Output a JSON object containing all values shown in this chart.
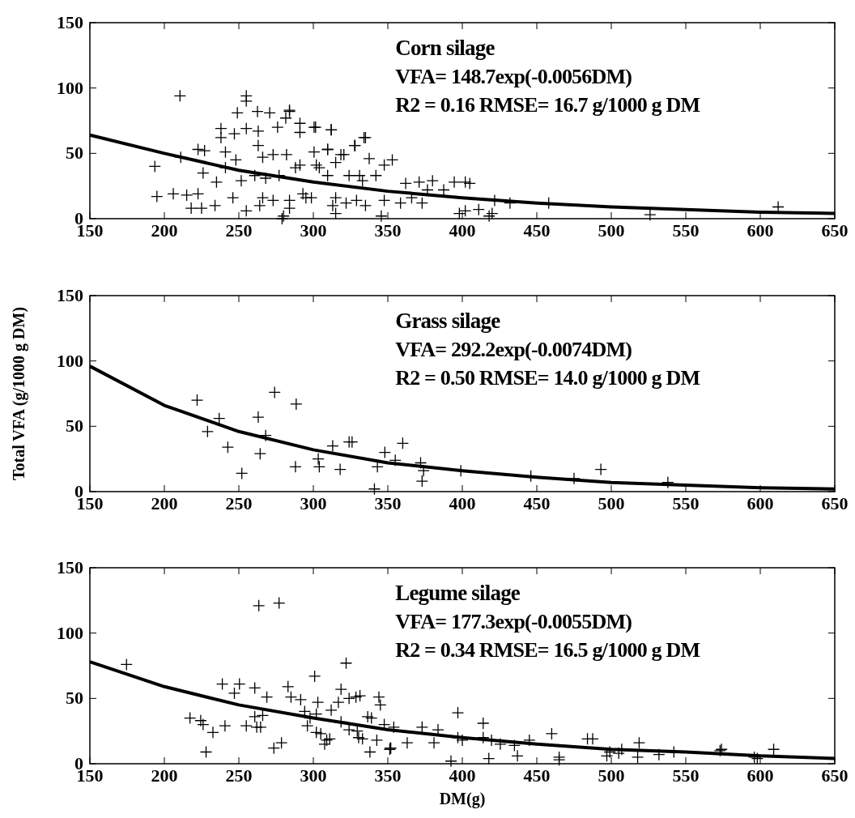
{
  "chart_data": [
    {
      "type": "scatter",
      "xlim": [
        150,
        650
      ],
      "xticks": [
        150,
        200,
        250,
        300,
        350,
        400,
        450,
        500,
        550,
        600,
        650
      ],
      "ylim": [
        0,
        150
      ],
      "yticks": [
        0,
        50,
        100,
        150
      ],
      "grid": false,
      "marker": "cross",
      "annotations": [
        "Corn silage",
        "VFA= 148.7exp(-0.0056DM)",
        "R2 = 0.16 RMSE= 16.7 g/1000 g DM"
      ],
      "series": [
        {
          "color": "#000000",
          "x": [
            210.5,
            193.6,
            195,
            206,
            211,
            215,
            218,
            222.6,
            225,
            226,
            222.6,
            227,
            234,
            235,
            238,
            238,
            241,
            247,
            249,
            255,
            255,
            255,
            262.5,
            263,
            263,
            270.7,
            276,
            281.5,
            284,
            291,
            301.5,
            312,
            309.6,
            334,
            327.7,
            280,
            255,
            246,
            266,
            273,
            284,
            291,
            295,
            302,
            313,
            315,
            322,
            324,
            331,
            335,
            277,
            251.6,
            260.7,
            266,
            273,
            282,
            300.5,
            318.5,
            248,
            241,
            284,
            291,
            300.5,
            312,
            335,
            328,
            353,
            347.6,
            337.5,
            309.6,
            309.6,
            320.5,
            333,
            342,
            347.6,
            358.5,
            362,
            371,
            380,
            394.6,
            402,
            405,
            376.6,
            387.5,
            366,
            373,
            398,
            402,
            411,
            418,
            420,
            421.7,
            432,
            279,
            315,
            264,
            298.7,
            315,
            329,
            345.6,
            268,
            288,
            304,
            293,
            284,
            458,
            526,
            612
          ],
          "values": [
            94,
            40,
            17,
            19,
            47,
            18,
            8,
            19,
            8,
            35,
            53,
            52,
            10,
            28,
            69,
            62,
            51,
            65,
            81,
            94,
            90,
            69,
            82,
            67,
            56,
            81,
            70,
            77,
            82,
            66,
            70,
            68,
            53,
            62,
            56,
            2,
            6,
            16,
            16,
            14,
            8,
            41,
            16,
            41,
            10,
            43,
            12,
            33,
            33,
            10,
            33,
            29,
            33,
            47,
            49,
            49,
            51,
            49,
            45,
            39,
            83,
            73,
            70,
            68,
            62,
            56,
            45,
            41,
            46,
            53,
            33,
            49,
            29,
            33,
            14,
            12,
            27,
            28,
            29,
            28,
            28,
            27,
            22,
            22,
            16,
            12,
            4,
            6,
            7,
            2,
            4,
            14,
            12,
            0,
            4,
            10,
            16,
            16,
            14,
            2,
            31,
            39,
            39,
            19,
            14,
            12,
            3,
            9
          ]
        },
        {
          "type": "line",
          "color": "#000000",
          "marker": "none",
          "x": [
            150,
            200,
            250,
            300,
            350,
            400,
            450,
            500,
            550,
            600,
            650
          ],
          "values": [
            64,
            50,
            37,
            28,
            21,
            16,
            12,
            9,
            7,
            5,
            4
          ]
        }
      ]
    },
    {
      "type": "scatter",
      "xlim": [
        150,
        650
      ],
      "xticks": [
        150,
        200,
        250,
        300,
        350,
        400,
        450,
        500,
        550,
        600,
        650
      ],
      "ylim": [
        0,
        150
      ],
      "yticks": [
        0,
        50,
        100,
        150
      ],
      "grid": false,
      "marker": "cross",
      "ylabel": "Total VFA (g/1000 g DM)",
      "annotations": [
        "Grass silage",
        "VFA= 292.2exp(-0.0074DM)",
        "R2 = 0.50 RMSE= 14.0 g/1000 g DM"
      ],
      "series": [
        {
          "color": "#000000",
          "x": [
            222,
            236.8,
            229,
            242.6,
            252,
            263,
            268,
            264.3,
            274,
            288.5,
            288,
            303.3,
            304,
            313,
            318,
            324,
            326,
            341,
            343,
            348,
            355,
            360,
            372,
            374,
            373,
            399,
            446,
            475,
            493,
            538
          ],
          "values": [
            70,
            56,
            46,
            34,
            14,
            57,
            43,
            29,
            76,
            67,
            19,
            25,
            19,
            35,
            17,
            38,
            38,
            2,
            19,
            30,
            24,
            37,
            22,
            16,
            8,
            16,
            12,
            10,
            17,
            7
          ]
        },
        {
          "type": "line",
          "color": "#000000",
          "marker": "none",
          "x": [
            150,
            200,
            250,
            300,
            350,
            400,
            450,
            500,
            550,
            600,
            650
          ],
          "values": [
            96,
            66,
            46,
            32,
            22,
            16,
            11,
            7,
            5,
            3,
            2
          ]
        }
      ]
    },
    {
      "type": "scatter",
      "xlim": [
        150,
        650
      ],
      "xticks": [
        150,
        200,
        250,
        300,
        350,
        400,
        450,
        500,
        550,
        600,
        650
      ],
      "ylim": [
        0,
        150
      ],
      "yticks": [
        0,
        50,
        100,
        150
      ],
      "grid": false,
      "marker": "cross",
      "xlabel": "DM(g)",
      "annotations": [
        "Legume silage",
        "VFA= 177.3exp(-0.0055DM)",
        "R2 = 0.34 RMSE= 16.5 g/1000 g DM"
      ],
      "series": [
        {
          "color": "#000000",
          "x": [
            174.6,
            263.4,
            277,
            322,
            300.9,
            238.9,
            250.4,
            247,
            260.7,
            268.8,
            283,
            285,
            291.5,
            303,
            312,
            316.8,
            318.6,
            324,
            328.6,
            331.3,
            344,
            345,
            217.2,
            224.4,
            226,
            232.6,
            240.7,
            255,
            260.7,
            266,
            262,
            264.6,
            228,
            273.5,
            278.6,
            294.2,
            297.8,
            302,
            296,
            302,
            305,
            309,
            311,
            307.6,
            318.6,
            324,
            329.5,
            330.4,
            333,
            336.5,
            339,
            342.6,
            338,
            347.6,
            351.3,
            352,
            354,
            397,
            414,
            460,
            484,
            487.5,
            518.7,
            574,
            609,
            596,
            598,
            532,
            517.7,
            499,
            497,
            505,
            465,
            465,
            417.8,
            392.4,
            351.6,
            363,
            381,
            373,
            383.7,
            397,
            400,
            414,
            419.6,
            425.5,
            435,
            445,
            437,
            507,
            542,
            573
          ],
          "values": [
            76,
            121,
            123,
            77,
            67,
            61,
            61,
            54,
            58,
            51,
            59,
            51,
            49,
            47,
            41,
            47,
            57,
            50,
            51,
            52,
            51,
            45,
            35,
            33,
            30,
            24,
            29,
            29,
            36,
            37,
            28,
            28,
            9,
            12,
            16,
            40,
            35,
            38,
            29,
            24,
            23,
            18,
            19,
            15,
            32,
            26,
            25,
            20,
            19,
            36,
            35,
            18,
            9,
            30,
            11,
            12,
            28,
            39,
            31,
            23,
            19,
            19,
            16,
            11,
            11,
            5,
            4,
            7,
            5,
            9,
            6,
            8,
            5,
            3,
            4,
            2,
            12,
            16,
            16,
            28,
            26,
            20,
            18,
            20,
            18,
            15,
            14,
            18,
            6,
            11,
            9,
            10
          ]
        },
        {
          "type": "line",
          "color": "#000000",
          "marker": "none",
          "x": [
            150,
            200,
            250,
            300,
            350,
            400,
            450,
            500,
            550,
            600,
            650
          ],
          "values": [
            78,
            59,
            45,
            35,
            26,
            20,
            15,
            11,
            9,
            6,
            4
          ]
        }
      ]
    }
  ]
}
